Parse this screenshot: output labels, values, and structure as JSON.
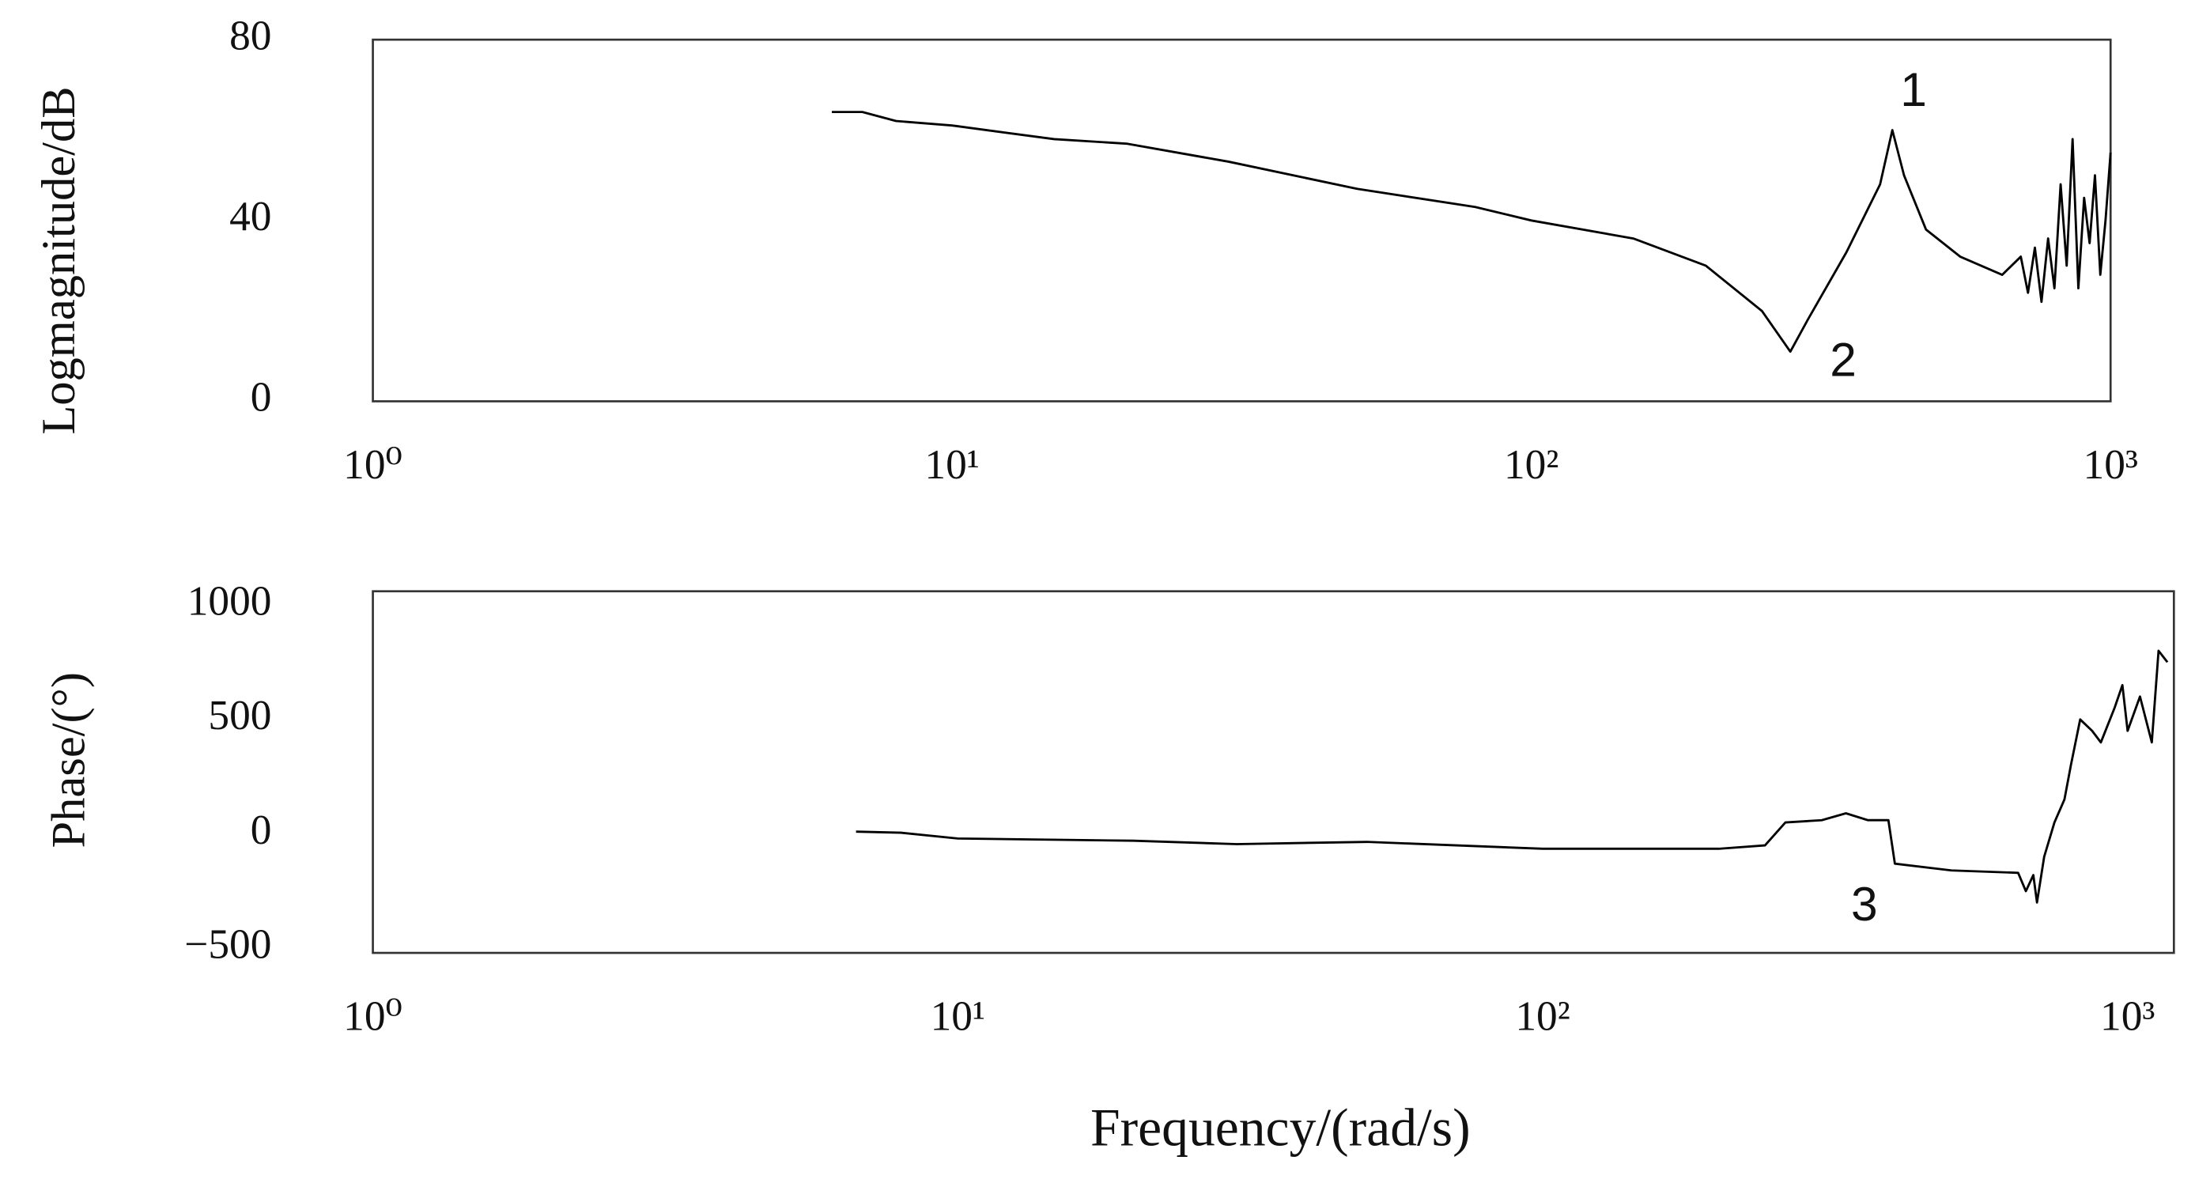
{
  "chart_data": [
    {
      "type": "line",
      "xscale": "log",
      "ylabel": "Logmagnitude/dB",
      "color": "#000000",
      "xlim": [
        1,
        1000
      ],
      "ylim": [
        0,
        80
      ],
      "xticks": [
        {
          "value": 1,
          "label": "10⁰"
        },
        {
          "value": 10,
          "label": "10¹"
        },
        {
          "value": 100,
          "label": "10²"
        },
        {
          "value": 1000,
          "label": "10³"
        }
      ],
      "yticks": [
        0,
        40,
        80
      ],
      "annotations": [
        "1",
        "2"
      ],
      "x": [
        6.2,
        7,
        8,
        10,
        15,
        20,
        30,
        50,
        80,
        100,
        150,
        200,
        250,
        280,
        300,
        350,
        400,
        420,
        440,
        480,
        550,
        650,
        700,
        720,
        740,
        760,
        780,
        800,
        820,
        840,
        860,
        880,
        900,
        920,
        940,
        960,
        980,
        1000
      ],
      "values": [
        64,
        64,
        62,
        61,
        58,
        57,
        53,
        47,
        43,
        40,
        36,
        30,
        20,
        11,
        18,
        33,
        48,
        60,
        50,
        38,
        32,
        28,
        32,
        24,
        34,
        22,
        36,
        25,
        48,
        30,
        58,
        25,
        45,
        35,
        50,
        28,
        40,
        55
      ]
    },
    {
      "type": "line",
      "xscale": "log",
      "ylabel": "Phase/(°)",
      "xlabel": "Frequency/(rad/s)",
      "color": "#000000",
      "xlim": [
        1,
        1200
      ],
      "ylim": [
        -520,
        1060
      ],
      "xticks": [
        {
          "value": 1,
          "label": "10⁰"
        },
        {
          "value": 10,
          "label": "10¹"
        },
        {
          "value": 100,
          "label": "10²"
        },
        {
          "value": 1000,
          "label": "10³"
        }
      ],
      "yticks": [
        {
          "value": -500,
          "label": "−500"
        },
        0,
        500,
        1000
      ],
      "annotations": [
        "3"
      ],
      "x": [
        6.7,
        8,
        10,
        20,
        30,
        50,
        100,
        200,
        240,
        260,
        300,
        330,
        360,
        390,
        400,
        500,
        650,
        670,
        690,
        700,
        720,
        750,
        780,
        800,
        830,
        870,
        900,
        950,
        980,
        1000,
        1050,
        1100,
        1130,
        1170
      ],
      "values": [
        10,
        5,
        -20,
        -30,
        -45,
        -35,
        -65,
        -65,
        -50,
        50,
        60,
        90,
        60,
        60,
        -130,
        -160,
        -170,
        -250,
        -180,
        -300,
        -100,
        50,
        150,
        300,
        500,
        450,
        400,
        550,
        650,
        450,
        600,
        400,
        800,
        750
      ]
    }
  ]
}
